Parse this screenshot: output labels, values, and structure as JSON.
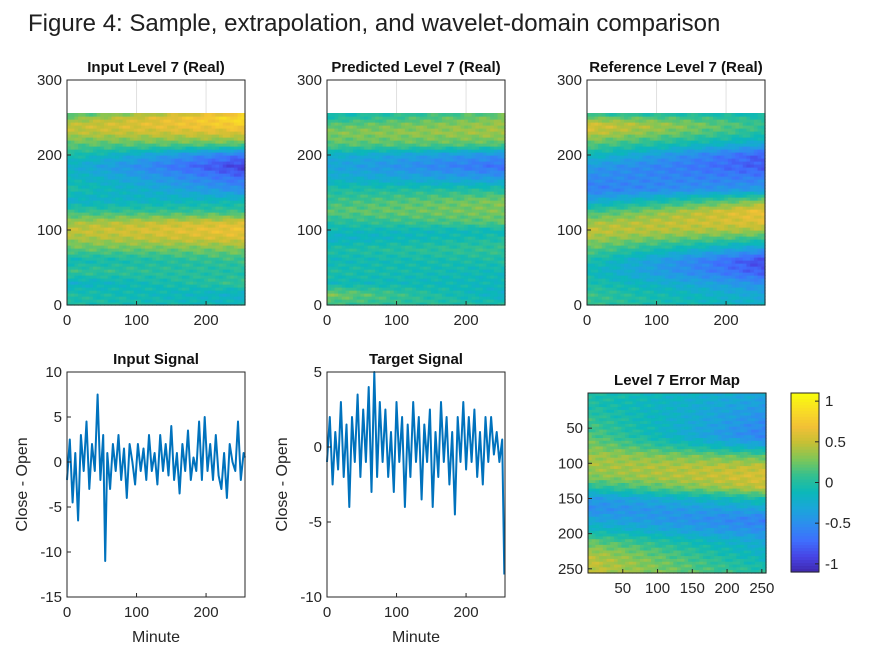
{
  "figure_title": "Figure 4: Sample, extrapolation, and wavelet-domain comparison",
  "colors": {
    "line": "#0072BD",
    "parula": [
      "#3E26A8",
      "#4743E4",
      "#3F6EFD",
      "#2D8DEF",
      "#1AA6D9",
      "#0BB8B8",
      "#33C090",
      "#7DC658",
      "#C4C035",
      "#F2C036",
      "#F9DD25",
      "#F9FB0E"
    ]
  },
  "chart_data": [
    {
      "id": "input-level7",
      "type": "heatmap",
      "title": "Input Level 7 (Real)",
      "xlim": [
        0,
        256
      ],
      "ylim": [
        0,
        300
      ],
      "xticks": [
        "0",
        "100",
        "200"
      ],
      "yticks": [
        "0",
        "100",
        "200",
        "300"
      ],
      "grid": true,
      "value_range": [
        -1.1,
        1.1
      ],
      "row_profile": {
        "y": [
          0,
          15,
          30,
          45,
          60,
          75,
          90,
          100,
          110,
          125,
          140,
          155,
          170,
          185,
          200,
          215,
          230,
          240,
          250,
          256
        ],
        "start": [
          0.0,
          0.0,
          -0.2,
          0.1,
          -0.1,
          0.2,
          0.4,
          0.5,
          0.4,
          0.1,
          -0.2,
          0.0,
          -0.1,
          -0.2,
          0.0,
          0.2,
          0.45,
          0.5,
          0.3,
          0.1
        ],
        "end": [
          -0.1,
          -0.2,
          0.1,
          0.0,
          0.1,
          0.3,
          0.6,
          0.7,
          0.6,
          0.1,
          -0.1,
          -0.5,
          -0.7,
          -0.95,
          -0.7,
          0.2,
          0.6,
          0.8,
          0.9,
          0.7
        ]
      }
    },
    {
      "id": "predicted-level7",
      "type": "heatmap",
      "title": "Predicted Level 7 (Real)",
      "xlim": [
        0,
        256
      ],
      "ylim": [
        0,
        300
      ],
      "xticks": [
        "0",
        "100",
        "200"
      ],
      "yticks": [
        "0",
        "100",
        "200",
        "300"
      ],
      "grid": true,
      "value_range": [
        -1.1,
        1.1
      ],
      "row_profile": {
        "y": [
          0,
          15,
          30,
          45,
          60,
          75,
          90,
          100,
          110,
          125,
          140,
          155,
          170,
          185,
          200,
          215,
          230,
          240,
          250,
          256
        ],
        "start": [
          0.1,
          0.3,
          -0.1,
          0.0,
          -0.1,
          0.0,
          -0.2,
          -0.1,
          0.0,
          0.2,
          0.1,
          0.0,
          -0.2,
          -0.3,
          -0.2,
          0.2,
          0.3,
          0.2,
          0.0,
          -0.1
        ],
        "end": [
          0.0,
          -0.2,
          -0.1,
          -0.1,
          0.0,
          0.1,
          0.0,
          -0.1,
          0.2,
          0.3,
          0.3,
          0.0,
          -0.4,
          -0.7,
          -0.5,
          0.2,
          0.4,
          0.4,
          0.3,
          0.2
        ]
      }
    },
    {
      "id": "reference-level7",
      "type": "heatmap",
      "title": "Reference Level 7 (Real)",
      "xlim": [
        0,
        256
      ],
      "ylim": [
        0,
        300
      ],
      "xticks": [
        "0",
        "100",
        "200"
      ],
      "yticks": [
        "0",
        "100",
        "200",
        "300"
      ],
      "grid": true,
      "value_range": [
        -1.1,
        1.1
      ],
      "row_profile": {
        "y": [
          0,
          15,
          30,
          45,
          60,
          75,
          90,
          100,
          110,
          125,
          140,
          155,
          170,
          185,
          200,
          215,
          230,
          240,
          250,
          256
        ],
        "start": [
          0.1,
          0.1,
          0.0,
          -0.1,
          0.0,
          0.2,
          0.4,
          0.5,
          0.4,
          0.1,
          -0.3,
          -0.6,
          -0.5,
          -0.4,
          -0.1,
          0.2,
          0.5,
          0.6,
          0.3,
          0.0
        ],
        "end": [
          -0.2,
          -0.3,
          -0.5,
          -0.8,
          -0.9,
          -0.4,
          0.1,
          0.4,
          0.6,
          0.7,
          0.3,
          -0.4,
          -0.6,
          -0.8,
          -0.8,
          -0.3,
          0.0,
          0.1,
          0.0,
          -0.1
        ]
      }
    },
    {
      "id": "input-signal",
      "type": "line",
      "title": "Input Signal",
      "xlabel": "Minute",
      "ylabel": "Close - Open",
      "xlim": [
        0,
        256
      ],
      "ylim": [
        -15,
        10
      ],
      "xticks": [
        "0",
        "100",
        "200"
      ],
      "yticks": [
        "-15",
        "-10",
        "-5",
        "0",
        "5",
        "10"
      ],
      "series": [
        {
          "x": [
            0,
            4,
            8,
            12,
            16,
            20,
            24,
            28,
            32,
            36,
            40,
            44,
            48,
            52,
            55,
            58,
            62,
            66,
            70,
            74,
            78,
            82,
            86,
            90,
            94,
            98,
            102,
            106,
            110,
            114,
            118,
            122,
            126,
            130,
            134,
            138,
            142,
            146,
            150,
            154,
            158,
            162,
            166,
            170,
            174,
            178,
            182,
            186,
            190,
            194,
            198,
            202,
            206,
            210,
            214,
            218,
            222,
            226,
            230,
            234,
            238,
            242,
            246,
            250,
            254,
            256
          ],
          "y": [
            -2,
            2.5,
            -4.5,
            1,
            -6.5,
            3,
            -1,
            4.5,
            -3,
            2,
            -1,
            7.5,
            -2,
            3,
            -11,
            1,
            -3,
            2,
            -1,
            3,
            -2,
            1.5,
            -4,
            2,
            0,
            -2.5,
            2,
            -1,
            1.5,
            -2,
            3,
            -1,
            1,
            -2.5,
            3,
            -1,
            2,
            -1.5,
            4,
            -2,
            1,
            -3.5,
            2,
            -1,
            3.5,
            -2,
            0.5,
            -1,
            4.5,
            -2,
            5,
            -1,
            2,
            -2,
            3,
            -1.5,
            -3,
            1,
            -4,
            2,
            0,
            -1,
            4.5,
            -2,
            1,
            0.5
          ]
        }
      ]
    },
    {
      "id": "target-signal",
      "type": "line",
      "title": "Target Signal",
      "xlabel": "Minute",
      "ylabel": "Close - Open",
      "xlim": [
        0,
        256
      ],
      "ylim": [
        -10,
        5
      ],
      "xticks": [
        "0",
        "100",
        "200"
      ],
      "yticks": [
        "-10",
        "-5",
        "0",
        "5"
      ],
      "series": [
        {
          "x": [
            0,
            4,
            8,
            12,
            16,
            20,
            24,
            28,
            32,
            36,
            40,
            44,
            48,
            52,
            56,
            60,
            64,
            68,
            72,
            76,
            80,
            84,
            88,
            92,
            96,
            100,
            104,
            108,
            112,
            116,
            120,
            124,
            128,
            132,
            136,
            140,
            144,
            148,
            152,
            156,
            160,
            164,
            168,
            172,
            176,
            180,
            184,
            188,
            192,
            196,
            200,
            204,
            208,
            212,
            216,
            220,
            224,
            228,
            232,
            236,
            240,
            244,
            248,
            252,
            255
          ],
          "y": [
            -1,
            2,
            -2.5,
            1,
            -1.5,
            3,
            -2,
            1.5,
            -4,
            2,
            -1,
            3.5,
            -2,
            2.5,
            -1,
            4,
            -3,
            5,
            -2,
            3,
            -1,
            2.5,
            -2,
            1,
            -3,
            3,
            -1,
            2,
            -4,
            1.5,
            -2,
            3,
            -1,
            2,
            -3.5,
            1.5,
            -1,
            2.5,
            -4,
            1,
            -2,
            3,
            -1,
            2,
            -2.5,
            1,
            -4.5,
            2,
            -1,
            3,
            -1.5,
            2,
            -1,
            2.5,
            -2,
            1,
            -2.5,
            2,
            -1,
            2,
            -0.5,
            1,
            -1,
            0.5,
            -8.5
          ]
        }
      ]
    },
    {
      "id": "level7-error-map",
      "type": "heatmap",
      "title": "Level 7 Error Map",
      "xlim": [
        0,
        256
      ],
      "ylim": [
        0,
        256
      ],
      "y_reversed": true,
      "xticks": [
        "50",
        "100",
        "150",
        "200",
        "250"
      ],
      "yticks": [
        "50",
        "100",
        "150",
        "200",
        "250"
      ],
      "value_range": [
        -1.1,
        1.1
      ],
      "colorbar_ticks": [
        "1",
        "0.5",
        "0",
        "-0.5",
        "-1"
      ],
      "row_profile": {
        "y": [
          0,
          20,
          40,
          60,
          75,
          90,
          105,
          120,
          135,
          150,
          165,
          180,
          195,
          210,
          225,
          240,
          256
        ],
        "start": [
          0.0,
          0.0,
          0.1,
          0.2,
          0.3,
          0.4,
          0.4,
          0.3,
          0.0,
          -0.4,
          -0.5,
          -0.3,
          -0.1,
          0.2,
          0.4,
          0.5,
          0.5
        ],
        "end": [
          -0.3,
          -0.4,
          -0.5,
          -0.6,
          -0.3,
          0.2,
          0.5,
          0.6,
          0.5,
          0.0,
          -0.3,
          -0.6,
          -0.5,
          -0.3,
          -0.2,
          -0.1,
          0.0
        ]
      }
    }
  ]
}
